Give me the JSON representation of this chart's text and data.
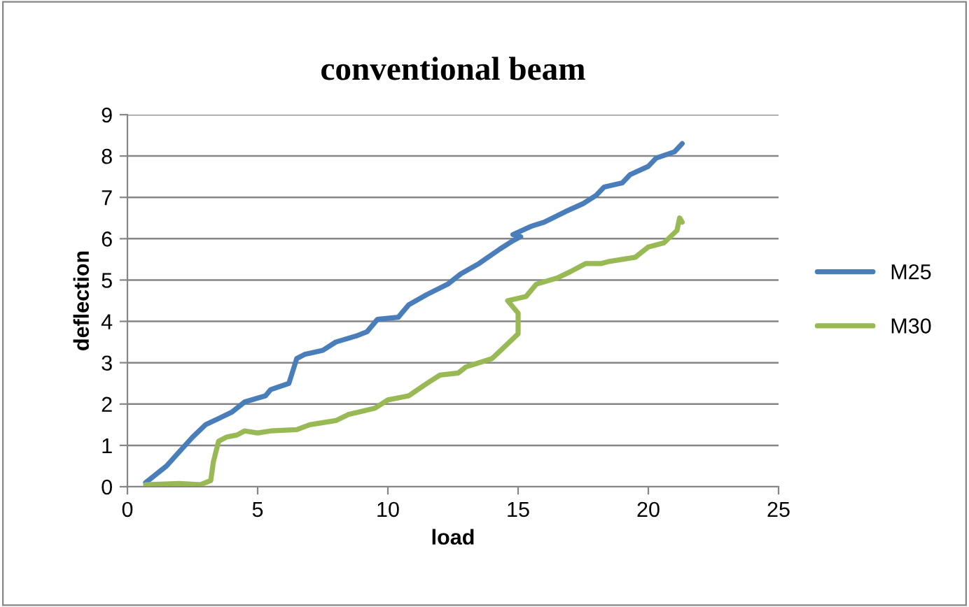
{
  "chart_data": {
    "type": "line",
    "title": "conventional beam",
    "xlabel": "load",
    "ylabel": "deflection",
    "xlim": [
      0,
      25
    ],
    "xticks": [
      0,
      5,
      10,
      15,
      20,
      25
    ],
    "ylim": [
      0,
      9
    ],
    "yticks": [
      0,
      1,
      2,
      3,
      4,
      5,
      6,
      7,
      8,
      9
    ],
    "grid": "y",
    "legend": "right",
    "marker": "none",
    "line_style": "solid",
    "series": [
      {
        "name": "M25",
        "color": "#4a7ebb",
        "x": [
          0.7,
          1.5,
          2.5,
          3,
          3.5,
          4,
          4.5,
          5.3,
          5.5,
          6.2,
          6.5,
          6.8,
          7.5,
          8,
          8.8,
          9.2,
          9.6,
          10.4,
          10.8,
          11.5,
          12.3,
          12.8,
          13.5,
          14.3,
          14.8,
          15.1,
          14.8,
          15.5,
          16,
          16.8,
          17.5,
          18,
          18.3,
          19,
          19.3,
          20,
          20.3,
          21,
          21.3
        ],
        "values": [
          0.1,
          0.5,
          1.2,
          1.5,
          1.65,
          1.8,
          2.05,
          2.2,
          2.35,
          2.5,
          3.1,
          3.2,
          3.3,
          3.5,
          3.65,
          3.75,
          4.05,
          4.1,
          4.4,
          4.65,
          4.9,
          5.15,
          5.4,
          5.75,
          5.95,
          6.05,
          6.1,
          6.3,
          6.4,
          6.65,
          6.85,
          7.05,
          7.25,
          7.35,
          7.55,
          7.75,
          7.95,
          8.1,
          8.3
        ]
      },
      {
        "name": "M30",
        "color": "#98b954",
        "x": [
          0.7,
          2,
          2.8,
          3.2,
          3.3,
          3.5,
          3.8,
          4.2,
          4.5,
          5,
          5.5,
          6.5,
          7,
          8,
          8.5,
          9.5,
          10,
          10.8,
          11.5,
          12,
          12.7,
          13,
          14,
          14.5,
          15,
          15,
          14.6,
          15.3,
          15.7,
          16.5,
          17,
          17.6,
          18.2,
          18.5,
          19.5,
          20,
          20.6,
          21.1,
          21.2,
          21.3
        ],
        "values": [
          0.05,
          0.08,
          0.05,
          0.15,
          0.6,
          1.1,
          1.2,
          1.25,
          1.35,
          1.3,
          1.35,
          1.38,
          1.5,
          1.6,
          1.75,
          1.9,
          2.1,
          2.2,
          2.5,
          2.7,
          2.75,
          2.9,
          3.1,
          3.4,
          3.7,
          4.2,
          4.5,
          4.6,
          4.9,
          5.05,
          5.2,
          5.4,
          5.4,
          5.45,
          5.55,
          5.8,
          5.9,
          6.2,
          6.5,
          6.4
        ]
      }
    ]
  }
}
